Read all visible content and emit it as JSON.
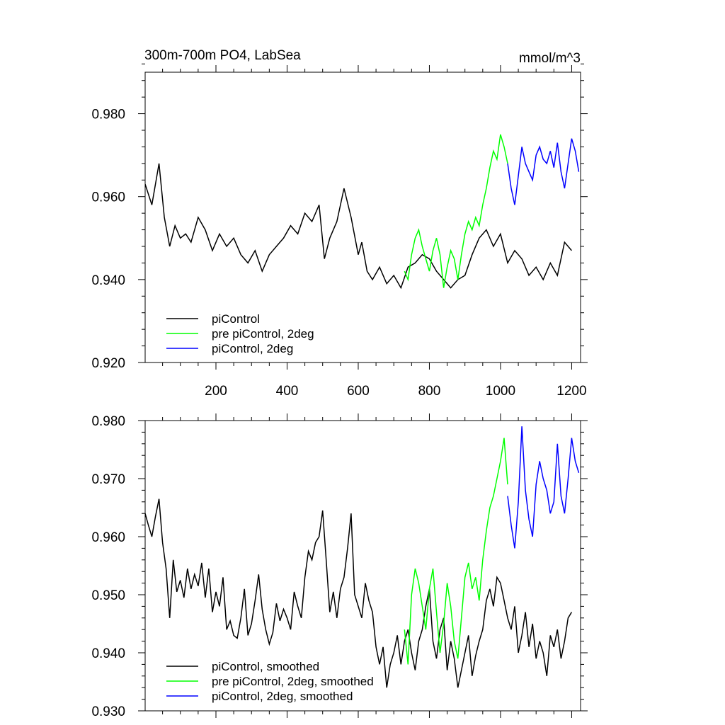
{
  "chart_data": [
    {
      "type": "line",
      "title": "300m-700m PO4, LabSea",
      "units": "mmol/m^3",
      "xlim": [
        1,
        1225
      ],
      "ylim": [
        0.92,
        0.99
      ],
      "x_ticks": [
        200,
        400,
        600,
        800,
        1000,
        1200
      ],
      "y_ticks": [
        0.92,
        0.94,
        0.96,
        0.98
      ],
      "y_tick_labels": [
        "0.920",
        "0.940",
        "0.960",
        "0.980"
      ],
      "legend_position": "bottom-left",
      "series": [
        {
          "name": "piControl",
          "color": "#000000",
          "x": [
            1,
            20,
            40,
            55,
            70,
            85,
            100,
            115,
            130,
            150,
            170,
            190,
            210,
            230,
            250,
            270,
            290,
            310,
            330,
            350,
            370,
            390,
            410,
            430,
            450,
            470,
            490,
            505,
            520,
            540,
            560,
            580,
            600,
            610,
            625,
            640,
            660,
            680,
            700,
            720,
            740,
            760,
            780,
            800,
            820,
            840,
            860,
            880,
            900,
            920,
            940,
            960,
            980,
            1000,
            1020,
            1040,
            1060,
            1080,
            1100,
            1120,
            1140,
            1160,
            1180,
            1200
          ],
          "y": [
            0.963,
            0.958,
            0.968,
            0.955,
            0.948,
            0.953,
            0.95,
            0.951,
            0.949,
            0.955,
            0.952,
            0.947,
            0.951,
            0.948,
            0.95,
            0.946,
            0.944,
            0.947,
            0.942,
            0.946,
            0.948,
            0.95,
            0.953,
            0.951,
            0.956,
            0.954,
            0.958,
            0.945,
            0.95,
            0.954,
            0.962,
            0.955,
            0.946,
            0.949,
            0.942,
            0.94,
            0.943,
            0.939,
            0.941,
            0.938,
            0.943,
            0.944,
            0.946,
            0.945,
            0.942,
            0.94,
            0.938,
            0.94,
            0.941,
            0.946,
            0.95,
            0.952,
            0.948,
            0.951,
            0.944,
            0.947,
            0.945,
            0.941,
            0.943,
            0.94,
            0.944,
            0.941,
            0.949,
            0.947
          ]
        },
        {
          "name": "pre piControl, 2deg",
          "color": "#00ff00",
          "x": [
            730,
            740,
            750,
            760,
            770,
            780,
            790,
            800,
            810,
            820,
            830,
            840,
            850,
            860,
            870,
            880,
            890,
            900,
            910,
            920,
            930,
            940,
            950,
            960,
            970,
            980,
            990,
            1000,
            1010,
            1020
          ],
          "y": [
            0.942,
            0.94,
            0.946,
            0.95,
            0.952,
            0.948,
            0.945,
            0.942,
            0.947,
            0.95,
            0.946,
            0.938,
            0.943,
            0.947,
            0.945,
            0.94,
            0.946,
            0.951,
            0.954,
            0.952,
            0.955,
            0.953,
            0.958,
            0.962,
            0.967,
            0.971,
            0.969,
            0.975,
            0.972,
            0.968
          ]
        },
        {
          "name": "piControl, 2deg",
          "color": "#0000ff",
          "x": [
            1020,
            1030,
            1040,
            1050,
            1060,
            1070,
            1080,
            1090,
            1100,
            1110,
            1120,
            1130,
            1140,
            1150,
            1160,
            1170,
            1180,
            1190,
            1200,
            1210,
            1220
          ],
          "y": [
            0.968,
            0.962,
            0.958,
            0.965,
            0.972,
            0.968,
            0.966,
            0.964,
            0.97,
            0.972,
            0.969,
            0.968,
            0.971,
            0.967,
            0.973,
            0.966,
            0.962,
            0.968,
            0.974,
            0.971,
            0.966
          ]
        }
      ]
    },
    {
      "type": "line",
      "title": "",
      "units": "",
      "xlim": [
        1,
        1225
      ],
      "ylim": [
        0.93,
        0.98
      ],
      "x_ticks": [
        200,
        400,
        600,
        800,
        1000,
        1200
      ],
      "y_ticks": [
        0.93,
        0.94,
        0.95,
        0.96,
        0.97,
        0.98
      ],
      "y_tick_labels": [
        "0.930",
        "0.940",
        "0.950",
        "0.960",
        "0.970",
        "0.980"
      ],
      "legend_position": "bottom-left",
      "series": [
        {
          "name": "piControl, smoothed",
          "color": "#000000",
          "x": [
            1,
            10,
            20,
            30,
            40,
            50,
            60,
            70,
            80,
            90,
            100,
            110,
            120,
            130,
            140,
            150,
            160,
            170,
            180,
            190,
            200,
            210,
            220,
            230,
            240,
            250,
            260,
            270,
            280,
            290,
            300,
            310,
            320,
            330,
            340,
            350,
            360,
            370,
            380,
            390,
            400,
            410,
            420,
            430,
            440,
            450,
            460,
            470,
            480,
            490,
            500,
            510,
            520,
            530,
            540,
            550,
            560,
            570,
            580,
            590,
            600,
            610,
            620,
            630,
            640,
            650,
            660,
            670,
            680,
            690,
            700,
            710,
            720,
            730,
            740,
            750,
            760,
            770,
            780,
            790,
            800,
            810,
            820,
            830,
            840,
            850,
            860,
            870,
            880,
            890,
            900,
            910,
            920,
            930,
            940,
            950,
            960,
            970,
            980,
            990,
            1000,
            1010,
            1020,
            1030,
            1040,
            1050,
            1060,
            1070,
            1080,
            1090,
            1100,
            1110,
            1120,
            1130,
            1140,
            1150,
            1160,
            1170,
            1180,
            1190,
            1200
          ],
          "y": [
            0.964,
            0.962,
            0.96,
            0.9635,
            0.9665,
            0.959,
            0.9545,
            0.946,
            0.956,
            0.9505,
            0.9525,
            0.9495,
            0.9545,
            0.951,
            0.9535,
            0.9515,
            0.9555,
            0.9495,
            0.9545,
            0.947,
            0.9505,
            0.948,
            0.953,
            0.944,
            0.9455,
            0.943,
            0.9425,
            0.946,
            0.951,
            0.943,
            0.945,
            0.949,
            0.9535,
            0.9475,
            0.944,
            0.9415,
            0.9435,
            0.9485,
            0.9455,
            0.9475,
            0.946,
            0.944,
            0.9505,
            0.948,
            0.946,
            0.953,
            0.9575,
            0.956,
            0.959,
            0.96,
            0.9645,
            0.956,
            0.947,
            0.9505,
            0.946,
            0.951,
            0.953,
            0.958,
            0.964,
            0.95,
            0.948,
            0.946,
            0.952,
            0.949,
            0.947,
            0.941,
            0.938,
            0.941,
            0.934,
            0.938,
            0.94,
            0.943,
            0.938,
            0.942,
            0.944,
            0.94,
            0.937,
            0.942,
            0.944,
            0.948,
            0.951,
            0.942,
            0.939,
            0.944,
            0.946,
            0.937,
            0.942,
            0.939,
            0.934,
            0.937,
            0.94,
            0.943,
            0.936,
            0.9395,
            0.942,
            0.944,
            0.949,
            0.951,
            0.948,
            0.953,
            0.952,
            0.949,
            0.946,
            0.944,
            0.948,
            0.94,
            0.943,
            0.947,
            0.941,
            0.945,
            0.939,
            0.942,
            0.94,
            0.936,
            0.943,
            0.941,
            0.944,
            0.939,
            0.942,
            0.946,
            0.947
          ]
        },
        {
          "name": "pre piControl, 2deg, smoothed",
          "color": "#00ff00",
          "x": [
            730,
            740,
            750,
            760,
            770,
            780,
            790,
            800,
            810,
            820,
            830,
            840,
            850,
            860,
            870,
            880,
            890,
            900,
            910,
            920,
            930,
            940,
            950,
            960,
            970,
            980,
            990,
            1000,
            1010,
            1020
          ],
          "y": [
            0.944,
            0.938,
            0.95,
            0.9545,
            0.952,
            0.948,
            0.944,
            0.951,
            0.9545,
            0.947,
            0.94,
            0.945,
            0.952,
            0.948,
            0.942,
            0.939,
            0.946,
            0.953,
            0.9555,
            0.951,
            0.953,
            0.949,
            0.956,
            0.961,
            0.965,
            0.967,
            0.97,
            0.973,
            0.977,
            0.969
          ]
        },
        {
          "name": "piControl, 2deg, smoothed",
          "color": "#0000ff",
          "x": [
            1020,
            1030,
            1040,
            1050,
            1060,
            1070,
            1080,
            1090,
            1100,
            1110,
            1120,
            1130,
            1140,
            1150,
            1160,
            1170,
            1180,
            1190,
            1200,
            1210,
            1220
          ],
          "y": [
            0.967,
            0.962,
            0.958,
            0.966,
            0.979,
            0.968,
            0.963,
            0.96,
            0.969,
            0.973,
            0.97,
            0.968,
            0.964,
            0.966,
            0.976,
            0.967,
            0.964,
            0.97,
            0.977,
            0.973,
            0.971
          ]
        }
      ]
    }
  ]
}
